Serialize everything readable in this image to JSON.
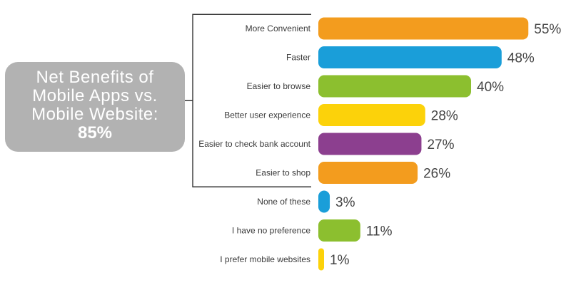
{
  "callout": {
    "lines": [
      "Net Benefits of",
      "Mobile Apps vs.",
      "Mobile Website:"
    ],
    "value": "85%"
  },
  "chart_data": {
    "type": "bar",
    "orientation": "horizontal",
    "categories": [
      "More Convenient",
      "Faster",
      "Easier to browse",
      "Better user experience",
      "Easier to check bank account",
      "Easier to shop",
      "None of these",
      "I have no preference",
      "I prefer mobile websites"
    ],
    "values": [
      55,
      48,
      40,
      28,
      27,
      26,
      3,
      11,
      1
    ],
    "value_labels": [
      "55%",
      "48%",
      "40%",
      "28%",
      "27%",
      "26%",
      "3%",
      "11%",
      "1%"
    ],
    "colors": [
      "#f39c1e",
      "#1a9ed9",
      "#8cbf2f",
      "#fcd20a",
      "#8c3f8f",
      "#f39c1e",
      "#1a9ed9",
      "#8cbf2f",
      "#fcd20a"
    ],
    "bracket_groups": [
      0,
      5
    ],
    "grid": false,
    "legend": "none",
    "xlim": [
      0,
      55
    ]
  }
}
